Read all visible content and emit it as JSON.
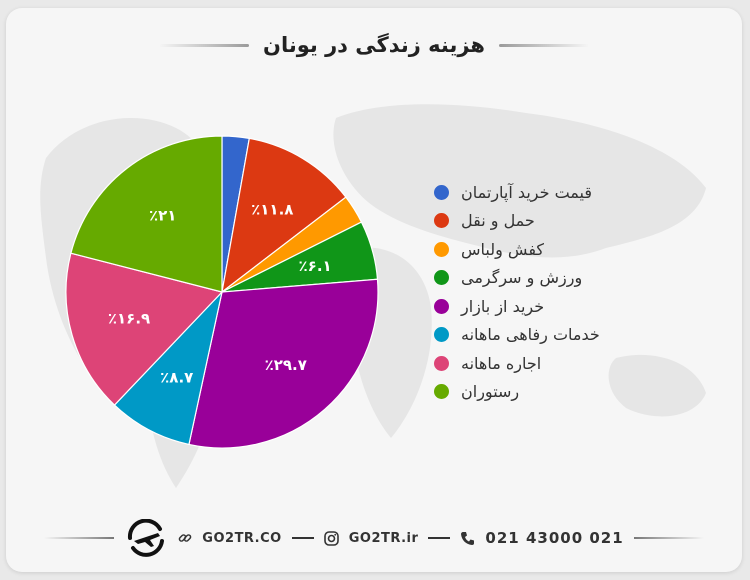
{
  "title": "هزینه زندگی در یونان",
  "colors": {
    "background": "#f6f6f6",
    "title": "#222222"
  },
  "chart_data": {
    "type": "pie",
    "title": "هزینه زندگی در یونان",
    "start_angle_deg": 0,
    "direction": "clockwise",
    "slices": [
      {
        "label": "قیمت خرید آپارتمان",
        "value": 2.8,
        "color": "#3366cc",
        "data_label": ""
      },
      {
        "label": "حمل و نقل",
        "value": 11.8,
        "color": "#dc3912",
        "data_label": "٪۱۱.۸"
      },
      {
        "label": "کفش ولباس",
        "value": 3.0,
        "color": "#ff9900",
        "data_label": ""
      },
      {
        "label": "ورزش و سرگرمی",
        "value": 6.1,
        "color": "#109618",
        "data_label": "٪۶.۱"
      },
      {
        "label": "خرید از بازار",
        "value": 29.7,
        "color": "#990099",
        "data_label": "٪۲۹.۷"
      },
      {
        "label": "خدمات رفاهی ماهانه",
        "value": 8.7,
        "color": "#0099c6",
        "data_label": "٪۸.۷"
      },
      {
        "label": "اجاره ماهانه",
        "value": 16.9,
        "color": "#dd4477",
        "data_label": "٪۱۶.۹"
      },
      {
        "label": "رستوران",
        "value": 21.0,
        "color": "#66aa00",
        "data_label": "٪۲۱"
      }
    ],
    "legend_position": "right"
  },
  "footer": {
    "website": "GO2TR.CO",
    "instagram": "GO2TR.ir",
    "phone": "021 43000 021",
    "icons": [
      "logo-icon",
      "link-icon",
      "instagram-icon",
      "phone-icon"
    ]
  }
}
